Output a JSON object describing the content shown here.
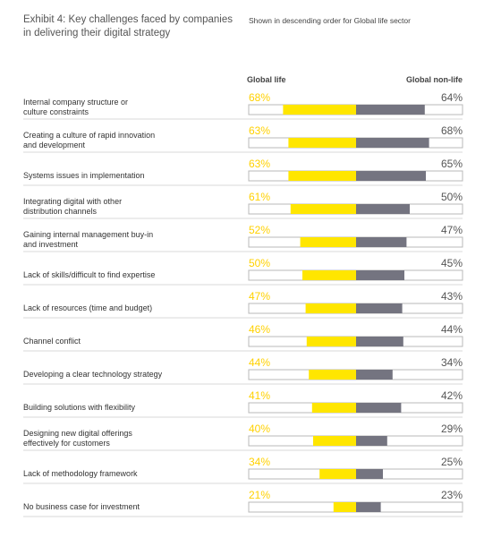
{
  "header": {
    "title": "Exhibit 4: Key challenges faced by companies\nin delivering their digital strategy",
    "subtitle": "Shown in descending order for Global life sector"
  },
  "colors": {
    "life": "#FFE600",
    "nonlife": "#747480",
    "track_border": "#b8b8b8",
    "row_divider": "#d9d9d9",
    "text": "#333333"
  },
  "chart_data": {
    "type": "bar",
    "orientation": "horizontal-diverging",
    "xlim": [
      0,
      100
    ],
    "series": [
      {
        "name": "Global life",
        "values": [
          68,
          63,
          63,
          61,
          52,
          50,
          47,
          46,
          44,
          41,
          40,
          34,
          21
        ]
      },
      {
        "name": "Global non-life",
        "values": [
          64,
          68,
          65,
          50,
          47,
          45,
          43,
          44,
          34,
          42,
          29,
          25,
          23
        ]
      }
    ],
    "categories": [
      "Internal company structure or\nculture constraints",
      "Creating a culture of rapid innovation\nand development",
      "Systems issues in implementation",
      "Integrating digital with other\ndistribution channels",
      "Gaining internal management buy-in\nand investment",
      "Lack of skills/difficult to find expertise",
      "Lack of resources (time and budget)",
      "Channel conflict",
      "Developing a clear technology strategy",
      "Building solutions with flexibility",
      "Designing new digital offerings\neffectively for customers",
      "Lack of methodology framework",
      "No business case for investment"
    ],
    "life_labels": [
      "68%",
      "63%",
      "63%",
      "61%",
      "52%",
      "50%",
      "47%",
      "46%",
      "44%",
      "41%",
      "40%",
      "34%",
      "21%"
    ],
    "nonlife_labels": [
      "64%",
      "68%",
      "65%",
      "50%",
      "47%",
      "45%",
      "43%",
      "44%",
      "34%",
      "42%",
      "29%",
      "25%",
      "23%"
    ],
    "legend": "top"
  }
}
